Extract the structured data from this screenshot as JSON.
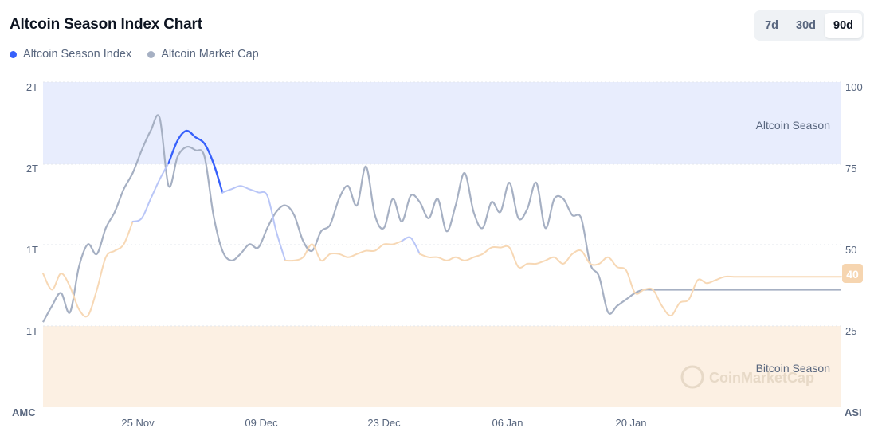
{
  "title": "Altcoin Season Index Chart",
  "legend": [
    {
      "label": "Altcoin Season Index",
      "color": "#3861fb"
    },
    {
      "label": "Altcoin Market Cap",
      "color": "#a6b0c3"
    }
  ],
  "range_tabs": [
    {
      "label": "7d",
      "active": false
    },
    {
      "label": "30d",
      "active": false
    },
    {
      "label": "90d",
      "active": true
    }
  ],
  "left_axis_ticks": [
    "2T",
    "2T",
    "1T",
    "1T"
  ],
  "right_axis_ticks": [
    "100",
    "75",
    "50",
    "25"
  ],
  "x_ticks": [
    "25 Nov",
    "09 Dec",
    "23 Dec",
    "06 Jan",
    "20 Jan"
  ],
  "corner_labels": {
    "left": "AMC",
    "right": "ASI"
  },
  "zones": {
    "altcoin": "Altcoin Season",
    "bitcoin": "Bitcoin Season"
  },
  "watermark": "CoinMarketCap",
  "last_value_label": "40",
  "colors": {
    "altcoin_zone": "#e8edfd",
    "bitcoin_zone": "#fcf0e3",
    "index_strong": "#3861fb",
    "index_mid": "#b9c6f7",
    "index_low": "#f7d8b5",
    "market_cap": "#a6b0c3",
    "last_badge": "#f6d5b0"
  },
  "chart_data": {
    "type": "line",
    "x_range": [
      "2024-11-13",
      "2025-02-11"
    ],
    "y_right_range": [
      0,
      100
    ],
    "grid": true,
    "legend_position": "top-left",
    "zones": [
      {
        "name": "Altcoin Season",
        "from": 75,
        "to": 100
      },
      {
        "name": "Bitcoin Season",
        "from": 0,
        "to": 25
      }
    ],
    "series": [
      {
        "name": "Altcoin Season Index",
        "axis": "right",
        "x": [
          0,
          1,
          2,
          3,
          4,
          5,
          6,
          7,
          8,
          9,
          10,
          11,
          12,
          13,
          14,
          15,
          16,
          17,
          18,
          19,
          20,
          21,
          22,
          23,
          24,
          25,
          26,
          27,
          28,
          29,
          30,
          31,
          32,
          33,
          34,
          35,
          36,
          37,
          38,
          39,
          40,
          41,
          42,
          43,
          44,
          45,
          46,
          47,
          48,
          49,
          50,
          51,
          52,
          53,
          54,
          55,
          56,
          57,
          58,
          59,
          60,
          61,
          62,
          63,
          64,
          65,
          66,
          67,
          68,
          69,
          70,
          71,
          72,
          73,
          74,
          75,
          76,
          77,
          78,
          79,
          80,
          81,
          82,
          83,
          84,
          85,
          86,
          87,
          88,
          89
        ],
        "values": [
          41,
          36,
          41,
          37,
          30,
          28,
          36,
          46,
          48,
          50,
          57,
          58,
          64,
          70,
          75,
          82,
          85,
          83,
          81,
          75,
          66,
          67,
          68,
          67,
          66,
          65,
          54,
          45,
          45,
          46,
          50,
          45,
          47,
          47,
          46,
          47,
          48,
          48,
          50,
          50,
          51,
          52,
          47,
          46,
          46,
          45,
          46,
          45,
          46,
          47,
          49,
          49,
          49,
          43,
          44,
          44,
          45,
          46,
          44,
          47,
          48,
          44,
          44,
          46,
          43,
          42,
          35,
          36,
          36,
          31,
          28,
          32,
          33,
          39,
          38,
          39,
          40,
          40,
          40,
          40,
          40,
          40,
          40,
          40,
          40,
          40,
          40,
          40,
          40,
          40
        ]
      },
      {
        "name": "Altcoin Market Cap",
        "axis": "left",
        "x": [
          0,
          1,
          2,
          3,
          4,
          5,
          6,
          7,
          8,
          9,
          10,
          11,
          12,
          13,
          14,
          15,
          16,
          17,
          18,
          19,
          20,
          21,
          22,
          23,
          24,
          25,
          26,
          27,
          28,
          29,
          30,
          31,
          32,
          33,
          34,
          35,
          36,
          37,
          38,
          39,
          40,
          41,
          42,
          43,
          44,
          45,
          46,
          47,
          48,
          49,
          50,
          51,
          52,
          53,
          54,
          55,
          56,
          57,
          58,
          59,
          60,
          61,
          62,
          63,
          64,
          65,
          66,
          67,
          68,
          69,
          70,
          71,
          72,
          73,
          74,
          75,
          76,
          77,
          78,
          79,
          80,
          81,
          82,
          83,
          84,
          85,
          86,
          87,
          88,
          89
        ],
        "values": [
          26,
          31,
          35,
          29,
          43,
          50,
          47,
          55,
          60,
          67,
          72,
          79,
          85,
          89,
          68,
          77,
          80,
          79,
          77,
          59,
          48,
          45,
          47,
          50,
          49,
          55,
          60,
          62,
          59,
          51,
          48,
          54,
          56,
          64,
          68,
          62,
          74,
          59,
          55,
          64,
          57,
          65,
          63,
          58,
          64,
          54,
          62,
          72,
          60,
          55,
          63,
          60,
          69,
          58,
          61,
          69,
          55,
          64,
          64,
          59,
          58,
          44,
          40,
          29,
          31,
          33,
          35,
          36,
          36,
          36,
          36,
          36,
          36,
          36,
          36,
          36,
          36,
          36,
          36,
          36,
          36,
          36,
          36,
          36,
          36,
          36,
          36,
          36,
          36,
          36
        ]
      }
    ]
  }
}
